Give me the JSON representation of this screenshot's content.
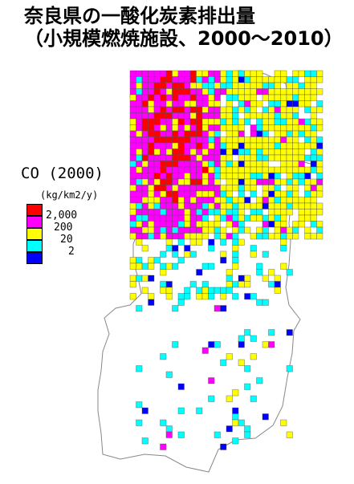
{
  "title": {
    "line1": "奈良県の一酸化炭素排出量",
    "line2": "（小規模燃焼施設、2000～2010）"
  },
  "legend": {
    "pollutant": "CO (2000)",
    "unit": "(kg/km2/y)",
    "classes": [
      {
        "color": "#ff0000",
        "label": "2,000"
      },
      {
        "color": "#ff00ff",
        "label": "200"
      },
      {
        "color": "#ffff00",
        "label": "20"
      },
      {
        "color": "#00ffff",
        "label": "2"
      },
      {
        "color": "#0000ff",
        "label": ""
      }
    ]
  },
  "map": {
    "region": "Nara Prefecture",
    "background_color": "#ffffff",
    "outline_color": "#888888"
  }
}
